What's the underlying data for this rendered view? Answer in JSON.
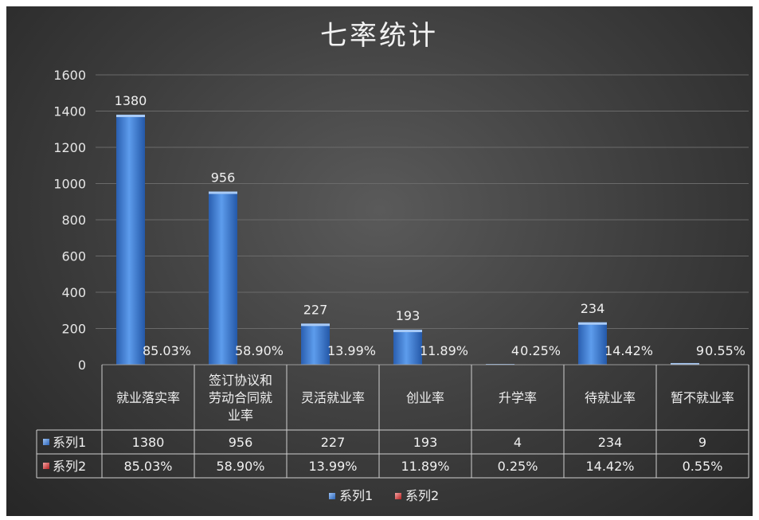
{
  "chart_data": {
    "type": "bar",
    "title": "七率统计",
    "categories": [
      "就业落实率",
      "签订协议和劳动合同就业率",
      "灵活就业率",
      "创业率",
      "升学率",
      "待就业率",
      "暂不就业率"
    ],
    "category_lines": [
      [
        "就业落实率"
      ],
      [
        "签订协议和",
        "劳动合同就",
        "业率"
      ],
      [
        "灵活就业率"
      ],
      [
        "创业率"
      ],
      [
        "升学率"
      ],
      [
        "待就业率"
      ],
      [
        "暂不就业率"
      ]
    ],
    "series": [
      {
        "name": "系列1",
        "values": [
          1380,
          956,
          227,
          193,
          4,
          234,
          9
        ],
        "labels": [
          "1380",
          "956",
          "227",
          "193",
          "4",
          "234",
          "9"
        ],
        "color": "#3a78d0"
      },
      {
        "name": "系列2",
        "values": [
          85.03,
          58.9,
          13.99,
          11.89,
          0.25,
          14.42,
          0.55
        ],
        "labels": [
          "85.03%",
          "58.90%",
          "13.99%",
          "11.89%",
          "0.25%",
          "14.42%",
          "0.55%"
        ],
        "color": "#c0392b"
      }
    ],
    "ylim": [
      0,
      1600
    ],
    "yticks": [
      0,
      200,
      400,
      600,
      800,
      1000,
      1200,
      1400,
      1600
    ],
    "grid": true,
    "legend": "bottom",
    "data_table": true
  }
}
